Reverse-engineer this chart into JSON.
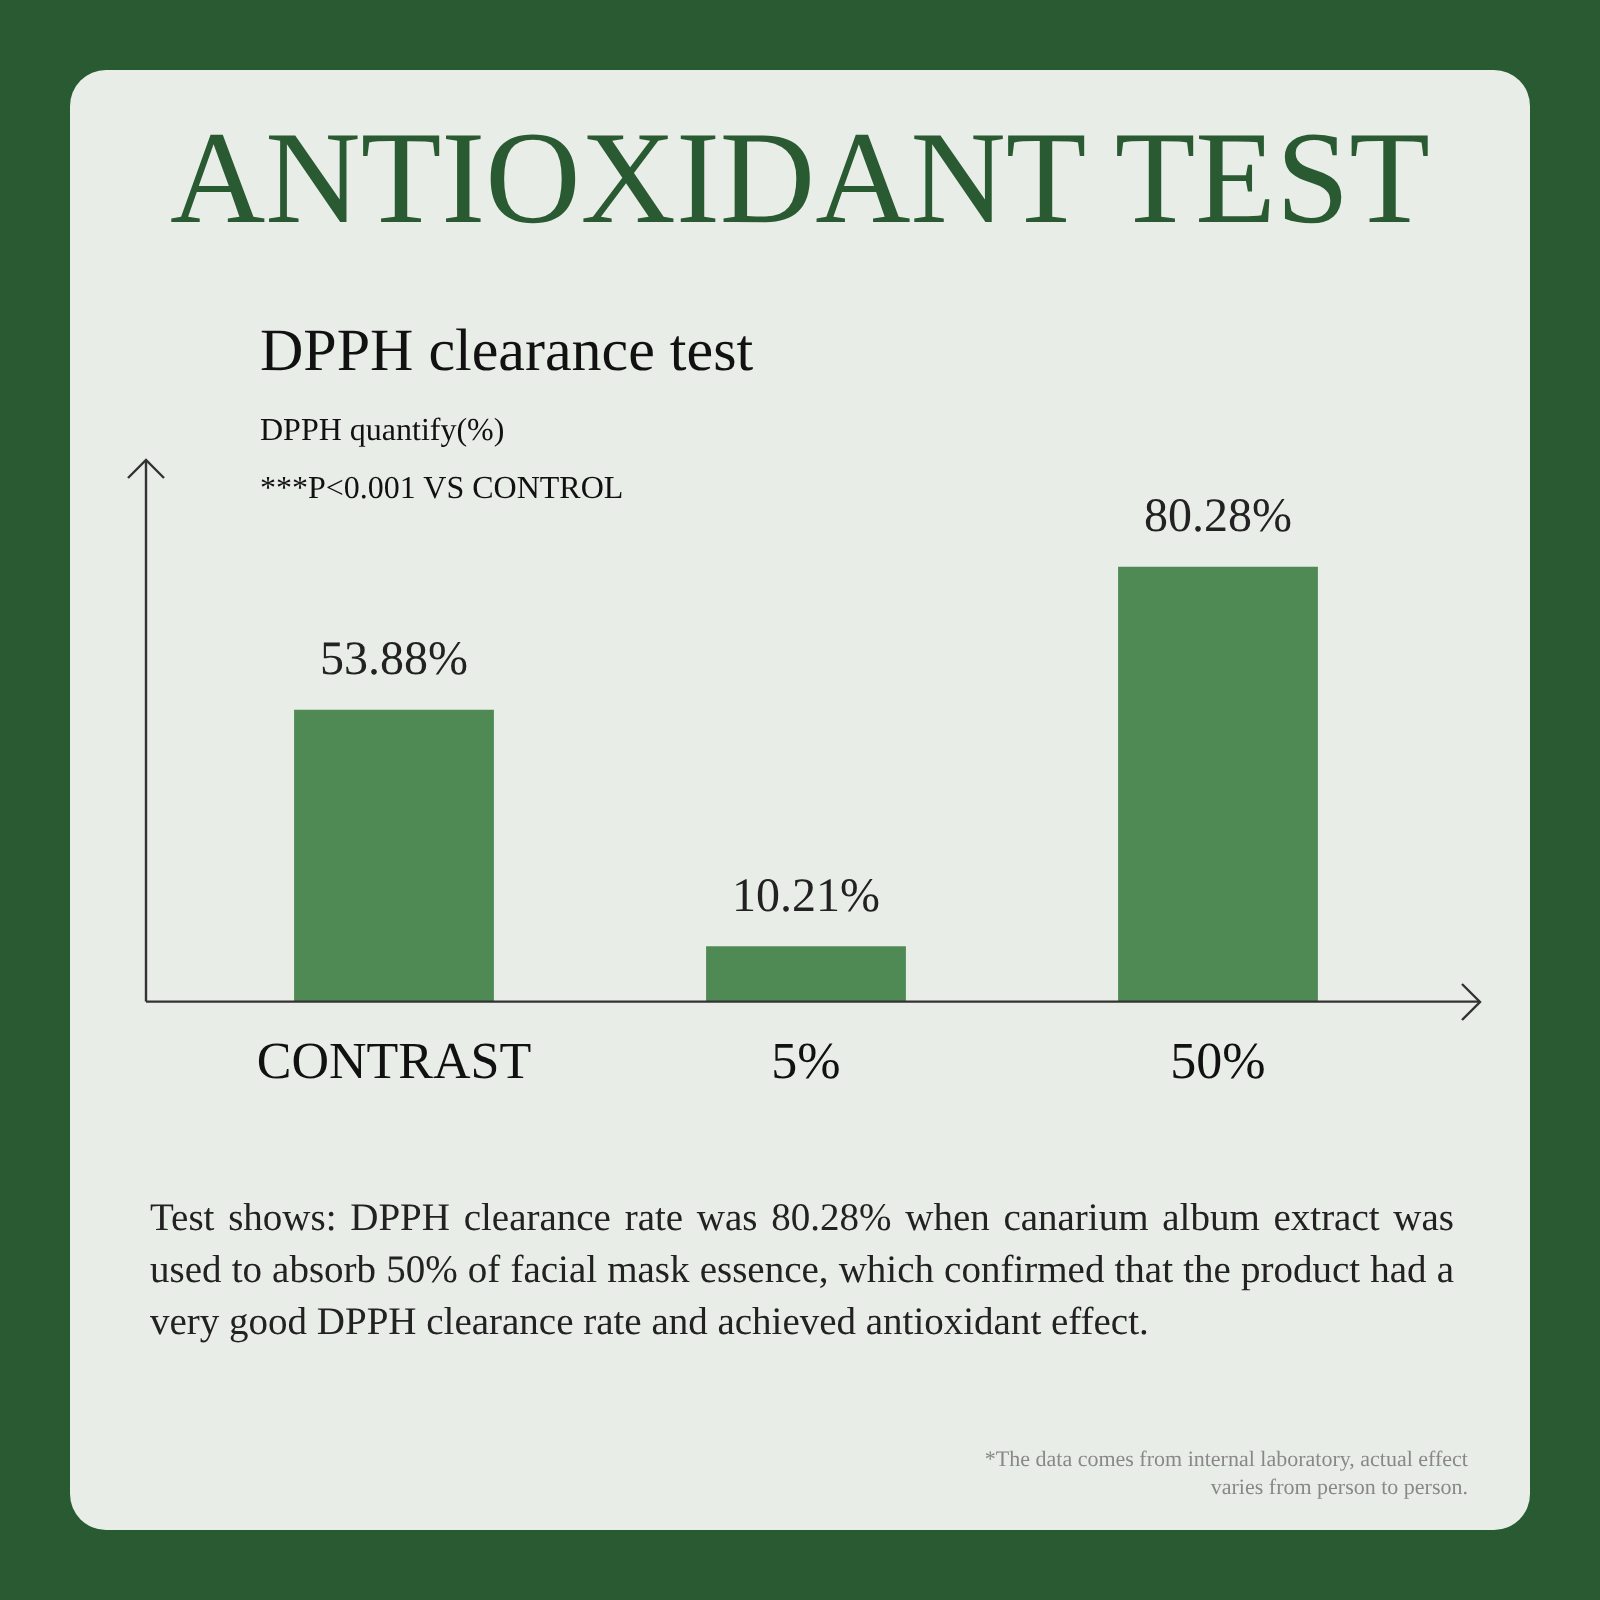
{
  "chart_data": {
    "type": "bar",
    "title": "ANTIOXIDANT TEST",
    "subtitle": "DPPH clearance test",
    "ylabel": "DPPH quantify(%)",
    "categories": [
      "CONTRAST",
      "5%",
      "50%"
    ],
    "values": [
      53.88,
      10.21,
      80.28
    ],
    "value_labels": [
      "53.88%",
      "10.21%",
      "80.28%"
    ],
    "color": "#4f8a55",
    "ylim": [
      0,
      100
    ],
    "grid": false,
    "legend": false,
    "tick_labels": "x",
    "annotations": [
      "***P<0.001 VS CONTROL",
      "Test shows: DPPH clearance rate was 80.28% when canarium album extract was used to absorb 50% of facial mask essence, which confirmed that the product had a very good DPPH clearance rate and achieved antioxidant effect.",
      "*The data comes from internal laboratory, actual effect varies from person to person."
    ]
  }
}
